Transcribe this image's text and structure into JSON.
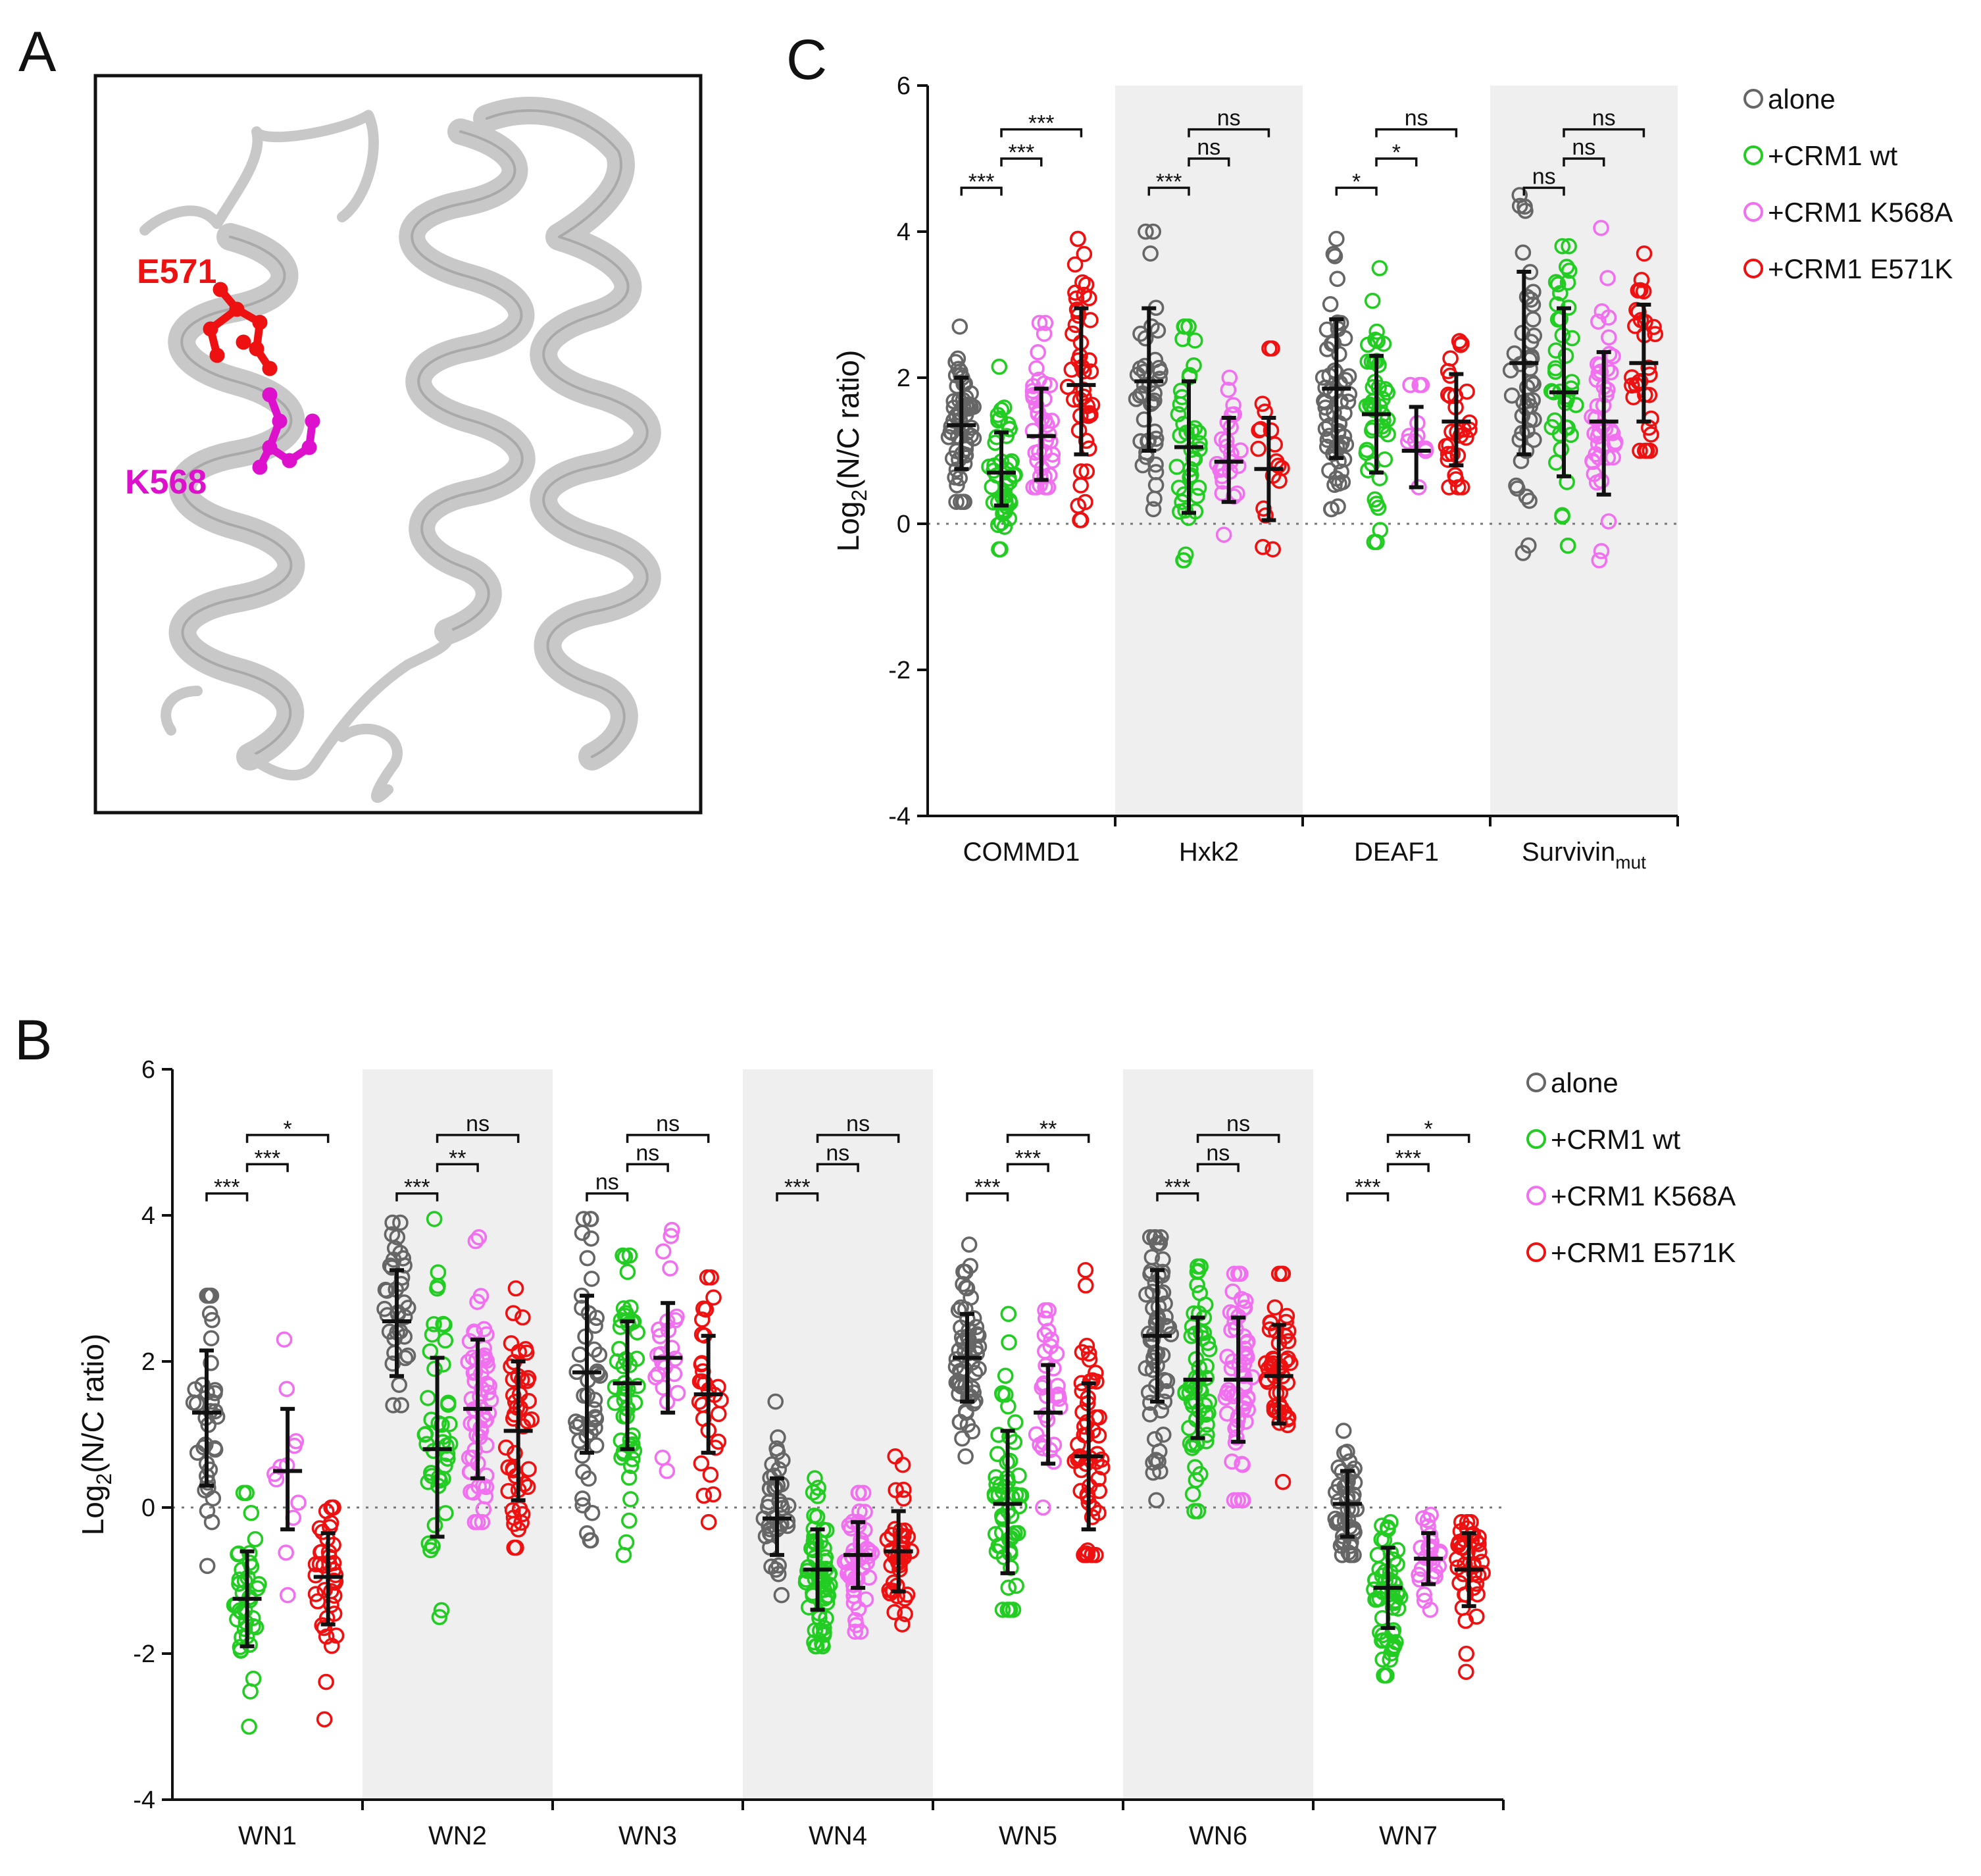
{
  "panel_labels": {
    "a": "A",
    "b": "B",
    "c": "C"
  },
  "structure": {
    "residues": [
      {
        "name": "E571",
        "color": "#ee1111"
      },
      {
        "name": "K568",
        "color": "#dd11cc"
      }
    ],
    "helix_color": "#c8c8c8"
  },
  "colors": {
    "alone": "#666666",
    "crm1_wt": "#22cc22",
    "crm1_k568a": "#f070f0",
    "crm1_e571k": "#ee1111",
    "shade": "#efefef"
  },
  "chart_data": [
    {
      "id": "C",
      "type": "scatter",
      "title": "",
      "ylabel": "Log2(N/C ratio)",
      "ylim": [
        -4,
        6
      ],
      "yticks": [
        -4,
        -2,
        0,
        2,
        4,
        6
      ],
      "shaded": [
        false,
        true,
        false,
        true
      ],
      "legend": [
        "alone",
        "+CRM1 wt",
        "+CRM1 K568A",
        "+CRM1 E571K"
      ],
      "groups": [
        {
          "label": "COMMD1",
          "sub": "",
          "series": [
            {
              "name": "alone",
              "mean": 1.35,
              "sd_low": 0.75,
              "sd_high": 2.0,
              "min": 0.3,
              "max": 2.7,
              "n": 60
            },
            {
              "name": "+CRM1 wt",
              "mean": 0.7,
              "sd_low": 0.25,
              "sd_high": 1.25,
              "min": -0.35,
              "max": 2.15,
              "n": 45
            },
            {
              "name": "+CRM1 K568A",
              "mean": 1.2,
              "sd_low": 0.6,
              "sd_high": 1.85,
              "min": 0.5,
              "max": 2.75,
              "n": 40
            },
            {
              "name": "+CRM1 E571K",
              "mean": 1.9,
              "sd_low": 0.95,
              "sd_high": 2.95,
              "min": 0.05,
              "max": 3.9,
              "n": 45
            }
          ],
          "sig": [
            {
              "label": "***",
              "from": 0,
              "to": 1,
              "y": 4.6
            },
            {
              "label": "***",
              "from": 1,
              "to": 2,
              "y": 5.0
            },
            {
              "label": "***",
              "from": 1,
              "to": 3,
              "y": 5.4
            }
          ]
        },
        {
          "label": "Hxk2",
          "sub": "",
          "series": [
            {
              "name": "alone",
              "mean": 1.95,
              "sd_low": 1.0,
              "sd_high": 2.95,
              "min": 0.2,
              "max": 4.0,
              "n": 40
            },
            {
              "name": "+CRM1 wt",
              "mean": 1.05,
              "sd_low": 0.15,
              "sd_high": 1.95,
              "min": -0.5,
              "max": 2.7,
              "n": 40
            },
            {
              "name": "+CRM1 K568A",
              "mean": 0.85,
              "sd_low": 0.3,
              "sd_high": 1.45,
              "min": -0.15,
              "max": 2.0,
              "n": 25
            },
            {
              "name": "+CRM1 E571K",
              "mean": 0.75,
              "sd_low": 0.05,
              "sd_high": 1.45,
              "min": -0.35,
              "max": 2.4,
              "n": 18
            }
          ],
          "sig": [
            {
              "label": "***",
              "from": 0,
              "to": 1,
              "y": 4.6
            },
            {
              "label": "ns",
              "from": 1,
              "to": 2,
              "y": 5.0
            },
            {
              "label": "ns",
              "from": 1,
              "to": 3,
              "y": 5.4
            }
          ]
        },
        {
          "label": "DEAF1",
          "sub": "",
          "series": [
            {
              "name": "alone",
              "mean": 1.85,
              "sd_low": 0.9,
              "sd_high": 2.8,
              "min": 0.2,
              "max": 3.9,
              "n": 60
            },
            {
              "name": "+CRM1 wt",
              "mean": 1.5,
              "sd_low": 0.7,
              "sd_high": 2.3,
              "min": -0.25,
              "max": 3.5,
              "n": 45
            },
            {
              "name": "+CRM1 K568A",
              "mean": 1.0,
              "sd_low": 0.5,
              "sd_high": 1.6,
              "min": 0.5,
              "max": 1.9,
              "n": 12
            },
            {
              "name": "+CRM1 E571K",
              "mean": 1.4,
              "sd_low": 0.8,
              "sd_high": 2.05,
              "min": 0.5,
              "max": 2.5,
              "n": 30
            }
          ],
          "sig": [
            {
              "label": "*",
              "from": 0,
              "to": 1,
              "y": 4.6
            },
            {
              "label": "*",
              "from": 1,
              "to": 2,
              "y": 5.0
            },
            {
              "label": "ns",
              "from": 1,
              "to": 3,
              "y": 5.4
            }
          ]
        },
        {
          "label": "Survivin",
          "sub": "mut",
          "series": [
            {
              "name": "alone",
              "mean": 2.2,
              "sd_low": 0.95,
              "sd_high": 3.45,
              "min": -0.4,
              "max": 4.5,
              "n": 45
            },
            {
              "name": "+CRM1 wt",
              "mean": 1.8,
              "sd_low": 0.65,
              "sd_high": 2.95,
              "min": -0.3,
              "max": 3.8,
              "n": 40
            },
            {
              "name": "+CRM1 K568A",
              "mean": 1.4,
              "sd_low": 0.4,
              "sd_high": 2.35,
              "min": -0.5,
              "max": 4.05,
              "n": 45
            },
            {
              "name": "+CRM1 E571K",
              "mean": 2.2,
              "sd_low": 1.4,
              "sd_high": 3.0,
              "min": 1.0,
              "max": 3.7,
              "n": 30
            }
          ],
          "sig": [
            {
              "label": "ns",
              "from": 0,
              "to": 1,
              "y": 4.6
            },
            {
              "label": "ns",
              "from": 1,
              "to": 2,
              "y": 5.0
            },
            {
              "label": "ns",
              "from": 1,
              "to": 3,
              "y": 5.4
            }
          ]
        }
      ]
    },
    {
      "id": "B",
      "type": "scatter",
      "title": "",
      "ylabel": "Log2(N/C ratio)",
      "ylim": [
        -4,
        6
      ],
      "yticks": [
        -4,
        -2,
        0,
        2,
        4,
        6
      ],
      "shaded": [
        false,
        true,
        false,
        true,
        false,
        true,
        false
      ],
      "legend": [
        "alone",
        "+CRM1 wt",
        "+CRM1 K568A",
        "+CRM1 E571K"
      ],
      "groups": [
        {
          "label": "WN1",
          "sub": "",
          "series": [
            {
              "name": "alone",
              "mean": 1.3,
              "sd_low": 0.3,
              "sd_high": 2.15,
              "min": -0.8,
              "max": 2.9,
              "n": 35
            },
            {
              "name": "+CRM1 wt",
              "mean": -1.25,
              "sd_low": -1.9,
              "sd_high": -0.6,
              "min": -3.0,
              "max": 0.2,
              "n": 40
            },
            {
              "name": "+CRM1 K568A",
              "mean": 0.5,
              "sd_low": -0.3,
              "sd_high": 1.35,
              "min": -1.2,
              "max": 2.3,
              "n": 12
            },
            {
              "name": "+CRM1 E571K",
              "mean": -0.95,
              "sd_low": -1.6,
              "sd_high": -0.35,
              "min": -2.9,
              "max": 0.0,
              "n": 40
            }
          ],
          "sig": [
            {
              "label": "***",
              "from": 0,
              "to": 1,
              "y": 4.3
            },
            {
              "label": "***",
              "from": 1,
              "to": 2,
              "y": 4.7
            },
            {
              "label": "*",
              "from": 1,
              "to": 3,
              "y": 5.1
            }
          ]
        },
        {
          "label": "WN2",
          "sub": "",
          "series": [
            {
              "name": "alone",
              "mean": 2.55,
              "sd_low": 1.8,
              "sd_high": 3.25,
              "min": 1.4,
              "max": 3.9,
              "n": 35
            },
            {
              "name": "+CRM1 wt",
              "mean": 0.8,
              "sd_low": -0.4,
              "sd_high": 2.05,
              "min": -1.5,
              "max": 3.95,
              "n": 45
            },
            {
              "name": "+CRM1 K568A",
              "mean": 1.35,
              "sd_low": 0.4,
              "sd_high": 2.3,
              "min": -0.2,
              "max": 3.7,
              "n": 60
            },
            {
              "name": "+CRM1 E571K",
              "mean": 1.05,
              "sd_low": 0.1,
              "sd_high": 2.0,
              "min": -0.55,
              "max": 3.0,
              "n": 45
            }
          ],
          "sig": [
            {
              "label": "***",
              "from": 0,
              "to": 1,
              "y": 4.3
            },
            {
              "label": "**",
              "from": 1,
              "to": 2,
              "y": 4.7
            },
            {
              "label": "ns",
              "from": 1,
              "to": 3,
              "y": 5.1
            }
          ]
        },
        {
          "label": "WN3",
          "sub": "",
          "series": [
            {
              "name": "alone",
              "mean": 1.85,
              "sd_low": 0.75,
              "sd_high": 2.9,
              "min": -0.45,
              "max": 3.95,
              "n": 45
            },
            {
              "name": "+CRM1 wt",
              "mean": 1.7,
              "sd_low": 0.8,
              "sd_high": 2.55,
              "min": -0.65,
              "max": 3.45,
              "n": 50
            },
            {
              "name": "+CRM1 K568A",
              "mean": 2.05,
              "sd_low": 1.3,
              "sd_high": 2.8,
              "min": 0.5,
              "max": 3.8,
              "n": 25
            },
            {
              "name": "+CRM1 E571K",
              "mean": 1.55,
              "sd_low": 0.75,
              "sd_high": 2.35,
              "min": -0.2,
              "max": 3.15,
              "n": 30
            }
          ],
          "sig": [
            {
              "label": "ns",
              "from": 0,
              "to": 1,
              "y": 4.3
            },
            {
              "label": "ns",
              "from": 1,
              "to": 2,
              "y": 4.7
            },
            {
              "label": "ns",
              "from": 1,
              "to": 3,
              "y": 5.1
            }
          ]
        },
        {
          "label": "WN4",
          "sub": "",
          "series": [
            {
              "name": "alone",
              "mean": -0.15,
              "sd_low": -0.65,
              "sd_high": 0.4,
              "min": -1.2,
              "max": 1.45,
              "n": 40
            },
            {
              "name": "+CRM1 wt",
              "mean": -0.85,
              "sd_low": -1.4,
              "sd_high": -0.3,
              "min": -1.9,
              "max": 0.4,
              "n": 60
            },
            {
              "name": "+CRM1 K568A",
              "mean": -0.65,
              "sd_low": -1.1,
              "sd_high": -0.2,
              "min": -1.7,
              "max": 0.2,
              "n": 45
            },
            {
              "name": "+CRM1 E571K",
              "mean": -0.6,
              "sd_low": -1.15,
              "sd_high": -0.05,
              "min": -1.6,
              "max": 0.7,
              "n": 40
            }
          ],
          "sig": [
            {
              "label": "***",
              "from": 0,
              "to": 1,
              "y": 4.3
            },
            {
              "label": "ns",
              "from": 1,
              "to": 2,
              "y": 4.7
            },
            {
              "label": "ns",
              "from": 1,
              "to": 3,
              "y": 5.1
            }
          ]
        },
        {
          "label": "WN5",
          "sub": "",
          "series": [
            {
              "name": "alone",
              "mean": 2.05,
              "sd_low": 1.45,
              "sd_high": 2.65,
              "min": 0.7,
              "max": 3.6,
              "n": 60
            },
            {
              "name": "+CRM1 wt",
              "mean": 0.05,
              "sd_low": -0.9,
              "sd_high": 1.05,
              "min": -1.4,
              "max": 2.65,
              "n": 55
            },
            {
              "name": "+CRM1 K568A",
              "mean": 1.3,
              "sd_low": 0.6,
              "sd_high": 1.95,
              "min": 0.0,
              "max": 2.7,
              "n": 30
            },
            {
              "name": "+CRM1 E571K",
              "mean": 0.7,
              "sd_low": -0.3,
              "sd_high": 1.7,
              "min": -0.65,
              "max": 3.25,
              "n": 55
            }
          ],
          "sig": [
            {
              "label": "***",
              "from": 0,
              "to": 1,
              "y": 4.3
            },
            {
              "label": "***",
              "from": 1,
              "to": 2,
              "y": 4.7
            },
            {
              "label": "**",
              "from": 1,
              "to": 3,
              "y": 5.1
            }
          ]
        },
        {
          "label": "WN6",
          "sub": "",
          "series": [
            {
              "name": "alone",
              "mean": 2.35,
              "sd_low": 1.45,
              "sd_high": 3.25,
              "min": 0.1,
              "max": 3.7,
              "n": 60
            },
            {
              "name": "+CRM1 wt",
              "mean": 1.75,
              "sd_low": 0.95,
              "sd_high": 2.6,
              "min": -0.05,
              "max": 3.3,
              "n": 55
            },
            {
              "name": "+CRM1 K568A",
              "mean": 1.75,
              "sd_low": 0.9,
              "sd_high": 2.6,
              "min": 0.1,
              "max": 3.2,
              "n": 60
            },
            {
              "name": "+CRM1 E571K",
              "mean": 1.8,
              "sd_low": 1.15,
              "sd_high": 2.5,
              "min": 0.35,
              "max": 3.2,
              "n": 45
            }
          ],
          "sig": [
            {
              "label": "***",
              "from": 0,
              "to": 1,
              "y": 4.3
            },
            {
              "label": "ns",
              "from": 1,
              "to": 2,
              "y": 4.7
            },
            {
              "label": "ns",
              "from": 1,
              "to": 3,
              "y": 5.1
            }
          ]
        },
        {
          "label": "WN7",
          "sub": "",
          "series": [
            {
              "name": "alone",
              "mean": 0.05,
              "sd_low": -0.4,
              "sd_high": 0.5,
              "min": -0.65,
              "max": 1.05,
              "n": 45
            },
            {
              "name": "+CRM1 wt",
              "mean": -1.1,
              "sd_low": -1.65,
              "sd_high": -0.55,
              "min": -2.3,
              "max": -0.2,
              "n": 55
            },
            {
              "name": "+CRM1 K568A",
              "mean": -0.7,
              "sd_low": -1.05,
              "sd_high": -0.35,
              "min": -1.4,
              "max": -0.1,
              "n": 25
            },
            {
              "name": "+CRM1 E571K",
              "mean": -0.85,
              "sd_low": -1.35,
              "sd_high": -0.35,
              "min": -2.25,
              "max": -0.2,
              "n": 40
            }
          ],
          "sig": [
            {
              "label": "***",
              "from": 0,
              "to": 1,
              "y": 4.3
            },
            {
              "label": "***",
              "from": 1,
              "to": 2,
              "y": 4.7
            },
            {
              "label": "*",
              "from": 1,
              "to": 3,
              "y": 5.1
            }
          ]
        }
      ]
    }
  ]
}
